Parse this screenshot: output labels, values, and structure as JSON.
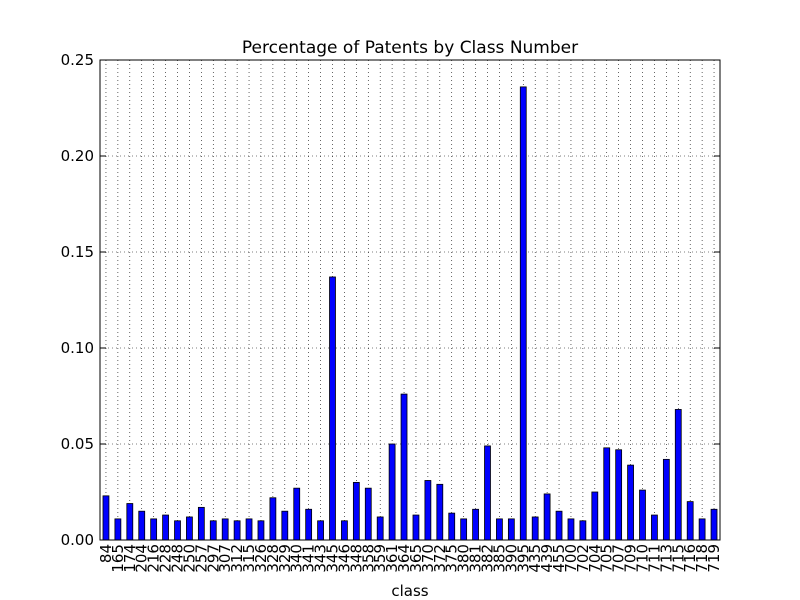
{
  "chart_data": {
    "type": "bar",
    "title": "Percentage of Patents by Class Number",
    "x_label": "class",
    "categories": [
      "84",
      "165",
      "174",
      "204",
      "216",
      "228",
      "248",
      "250",
      "257",
      "297",
      "307",
      "312",
      "315",
      "326",
      "328",
      "329",
      "340",
      "341",
      "343",
      "345",
      "346",
      "348",
      "358",
      "359",
      "361",
      "364",
      "365",
      "370",
      "372",
      "375",
      "380",
      "381",
      "382",
      "385",
      "390",
      "395",
      "435",
      "439",
      "455",
      "700",
      "702",
      "704",
      "705",
      "707",
      "709",
      "710",
      "711",
      "713",
      "715",
      "716",
      "718",
      "719"
    ],
    "values": [
      0.023,
      0.011,
      0.019,
      0.015,
      0.011,
      0.013,
      0.01,
      0.012,
      0.017,
      0.01,
      0.011,
      0.01,
      0.011,
      0.01,
      0.022,
      0.015,
      0.027,
      0.016,
      0.01,
      0.137,
      0.01,
      0.03,
      0.027,
      0.012,
      0.05,
      0.076,
      0.013,
      0.031,
      0.029,
      0.014,
      0.011,
      0.016,
      0.049,
      0.011,
      0.011,
      0.236,
      0.012,
      0.024,
      0.015,
      0.011,
      0.01,
      0.025,
      0.048,
      0.047,
      0.039,
      0.026,
      0.013,
      0.042,
      0.068,
      0.02,
      0.011,
      0.016
    ],
    "color": "#0000ff",
    "ylim": [
      0,
      0.25
    ],
    "yticks": [
      {
        "value": 0,
        "label": "0.00"
      },
      {
        "value": 0.05,
        "label": "0.05"
      },
      {
        "value": 0.1,
        "label": "0.10"
      },
      {
        "value": 0.15,
        "label": "0.15"
      },
      {
        "value": 0.2,
        "label": "0.20"
      },
      {
        "value": 0.25,
        "label": "0.25"
      }
    ],
    "grid": true
  }
}
